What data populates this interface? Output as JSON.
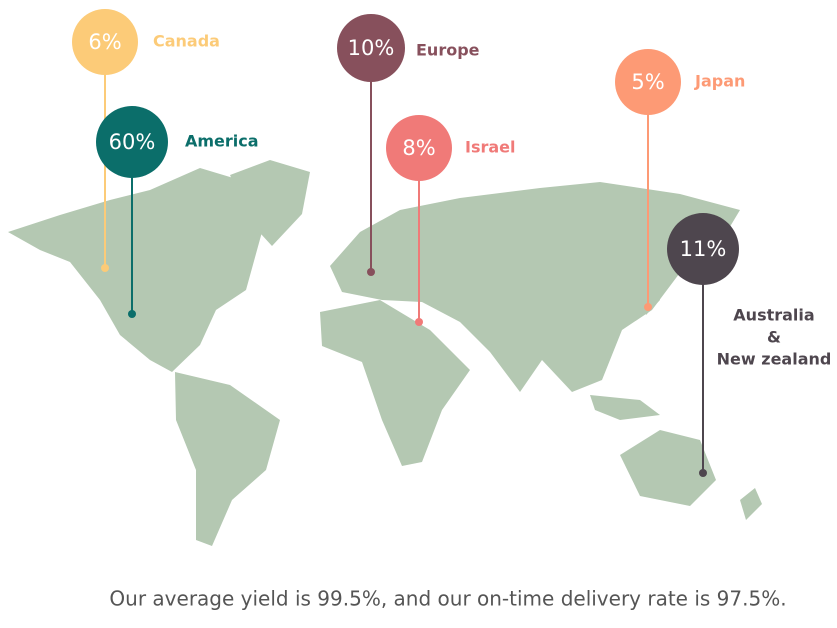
{
  "markers": [
    {
      "value": "6%",
      "label_lines": [
        "Canada"
      ],
      "color": "#fccb78"
    },
    {
      "value": "60%",
      "label_lines": [
        "America"
      ],
      "color": "#0b6e6a"
    },
    {
      "value": "10%",
      "label_lines": [
        "Europe"
      ],
      "color": "#87505c"
    },
    {
      "value": "8%",
      "label_lines": [
        "Israel"
      ],
      "color": "#f07a78"
    },
    {
      "value": "5%",
      "label_lines": [
        "Japan"
      ],
      "color": "#fd9a75"
    },
    {
      "value": "11%",
      "label_lines": [
        "Australia",
        "&",
        "New zealand"
      ],
      "color": "#4e464e"
    }
  ],
  "caption": "Our average yield is 99.5%, and our on-time delivery rate is 97.5%."
}
